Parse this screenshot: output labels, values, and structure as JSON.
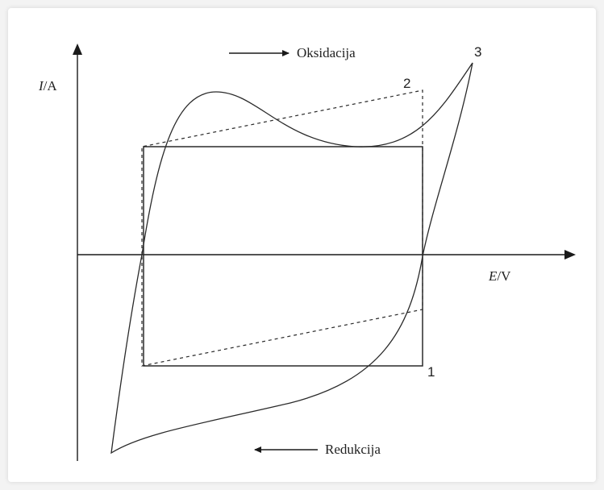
{
  "axes": {
    "y_label_italic": "I",
    "y_label_unit": "/A",
    "x_label_italic": "E",
    "x_label_unit": "/V"
  },
  "arrows": {
    "oxidation": "Oksidacija",
    "reduction": "Redukcija"
  },
  "curve_labels": {
    "rect_solid": "1",
    "dashed": "2",
    "loop": "3"
  },
  "colors": {
    "background": "#ffffff",
    "page": "#f3f3f3",
    "ink": "#2a2a2a"
  }
}
